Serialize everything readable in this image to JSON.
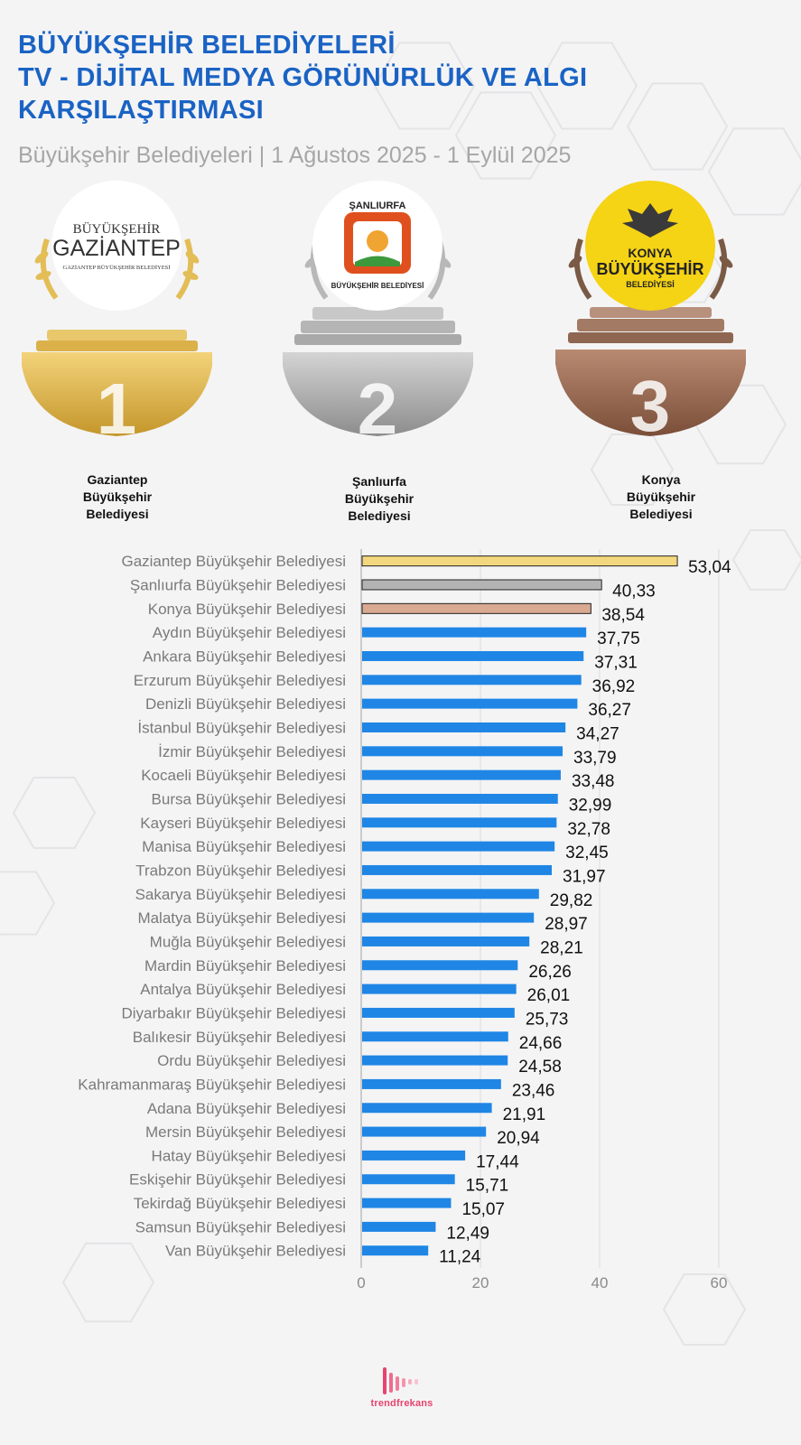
{
  "header": {
    "title_lines": [
      "BÜYÜKŞEHİR BELEDİYELERİ",
      "TV - DİJİTAL MEDYA GÖRÜNÜRLÜK VE ALGI",
      "KARŞILAŞTIRMASI"
    ],
    "subtitle": "Büyükşehir Belediyeleri | 1 Ağustos 2025 - 1 Eylül 2025"
  },
  "podium": [
    {
      "rank": "1",
      "name_lines": [
        "Gaziantep",
        "Büyükşehir",
        "Belediyesi"
      ],
      "logo_top": "BÜYÜKŞEHİR",
      "logo_main": "GAZİANTEP",
      "logo_bottom": "GAZİANTEP BÜYÜKŞEHİR BELEDİYESİ",
      "color": "#d9ae3c"
    },
    {
      "rank": "2",
      "name_lines": [
        "Şanlıurfa",
        "Büyükşehir",
        "Belediyesi"
      ],
      "logo_top": "ŞANLIURFA",
      "logo_bottom": "BÜYÜKŞEHİR BELEDİYESİ",
      "color": "#a9a9a9"
    },
    {
      "rank": "3",
      "name_lines": [
        "Konya",
        "Büyükşehir",
        "Belediyesi"
      ],
      "logo_top": "KONYA",
      "logo_main": "BÜYÜKŞEHİR",
      "logo_bottom": "BELEDİYESİ",
      "color": "#9a6d54"
    }
  ],
  "chart_data": {
    "type": "bar",
    "orientation": "horizontal",
    "categories": [
      "Gaziantep Büyükşehir Belediyesi",
      "Şanlıurfa Büyükşehir Belediyesi",
      "Konya Büyükşehir Belediyesi",
      "Aydın Büyükşehir Belediyesi",
      "Ankara Büyükşehir Belediyesi",
      "Erzurum Büyükşehir Belediyesi",
      "Denizli Büyükşehir Belediyesi",
      "İstanbul Büyükşehir Belediyesi",
      "İzmir Büyükşehir Belediyesi",
      "Kocaeli Büyükşehir Belediyesi",
      "Bursa Büyükşehir Belediyesi",
      "Kayseri Büyükşehir Belediyesi",
      "Manisa Büyükşehir Belediyesi",
      "Trabzon Büyükşehir Belediyesi",
      "Sakarya Büyükşehir Belediyesi",
      "Malatya Büyükşehir Belediyesi",
      "Muğla Büyükşehir Belediyesi",
      "Mardin Büyükşehir Belediyesi",
      "Antalya Büyükşehir Belediyesi",
      "Diyarbakır Büyükşehir Belediyesi",
      "Balıkesir Büyükşehir Belediyesi",
      "Ordu Büyükşehir Belediyesi",
      "Kahramanmaraş Büyükşehir Belediyesi",
      "Adana Büyükşehir Belediyesi",
      "Mersin Büyükşehir Belediyesi",
      "Hatay Büyükşehir Belediyesi",
      "Eskişehir Büyükşehir Belediyesi",
      "Tekirdağ Büyükşehir Belediyesi",
      "Samsun Büyükşehir Belediyesi",
      "Van Büyükşehir Belediyesi"
    ],
    "values": [
      53.04,
      40.33,
      38.54,
      37.75,
      37.31,
      36.92,
      36.27,
      34.27,
      33.79,
      33.48,
      32.99,
      32.78,
      32.45,
      31.97,
      29.82,
      28.97,
      28.21,
      26.26,
      26.01,
      25.73,
      24.66,
      24.58,
      23.46,
      21.91,
      20.94,
      17.44,
      15.71,
      15.07,
      12.49,
      11.24
    ],
    "value_labels": [
      "53,04",
      "40,33",
      "38,54",
      "37,75",
      "37,31",
      "36,92",
      "36,27",
      "34,27",
      "33,79",
      "33,48",
      "32,99",
      "32,78",
      "32,45",
      "31,97",
      "29,82",
      "28,97",
      "28,21",
      "26,26",
      "26,01",
      "25,73",
      "24,66",
      "24,58",
      "23,46",
      "21,91",
      "20,94",
      "17,44",
      "15,71",
      "15,07",
      "12,49",
      "11,24"
    ],
    "bar_colors": {
      "first": "#f2d77e",
      "second": "#b3b3b3",
      "third": "#d9a991",
      "default": "#1f86e5"
    },
    "xlim": [
      0,
      60
    ],
    "xticks": [
      "0",
      "20",
      "40",
      "60"
    ],
    "grid": true,
    "title": "",
    "xlabel": "",
    "ylabel": ""
  },
  "brand": {
    "name": "trendfrekans"
  }
}
